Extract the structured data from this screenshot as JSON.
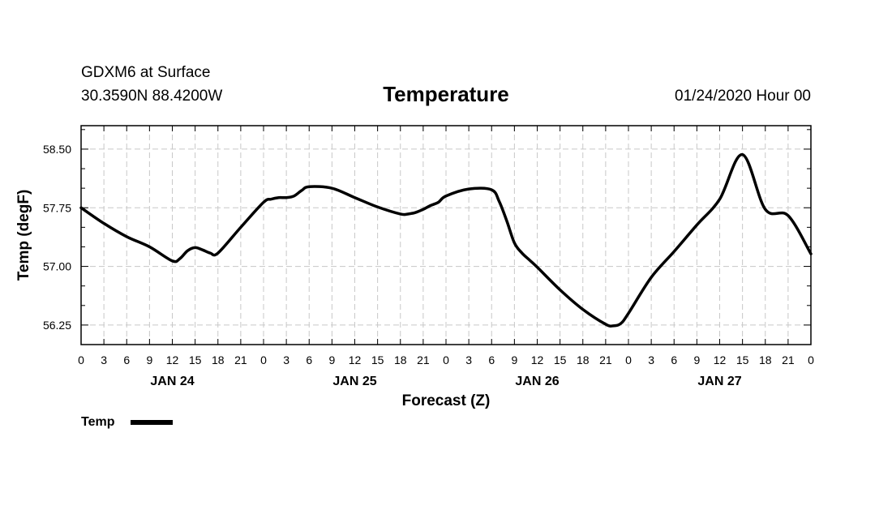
{
  "header": {
    "station": "GDXM6 at Surface",
    "coords": "30.3590N 88.4200W",
    "title": "Temperature",
    "run": "01/24/2020 Hour 00"
  },
  "chart_data": {
    "type": "line",
    "title": "Temperature",
    "xlabel": "Forecast (Z)",
    "ylabel": "Temp (degF)",
    "xlim": [
      0,
      96
    ],
    "ylim": [
      56.0,
      58.8
    ],
    "y_ticks": [
      56.25,
      57.0,
      57.75,
      58.5
    ],
    "y_tick_labels": [
      "56.25",
      "57.00",
      "57.75",
      "58.50"
    ],
    "x_tick_labels": [
      "0",
      "3",
      "6",
      "9",
      "12",
      "15",
      "18",
      "21",
      "0",
      "3",
      "6",
      "9",
      "12",
      "15",
      "18",
      "21",
      "0",
      "3",
      "6",
      "9",
      "12",
      "15",
      "18",
      "21",
      "0",
      "3",
      "6",
      "9",
      "12",
      "15",
      "18",
      "21",
      "0"
    ],
    "day_labels": [
      {
        "label": "JAN 24",
        "center_hour": 12
      },
      {
        "label": "JAN 25",
        "center_hour": 36
      },
      {
        "label": "JAN 26",
        "center_hour": 60
      },
      {
        "label": "JAN 27",
        "center_hour": 84
      }
    ],
    "grid": true,
    "legend": "bottom-left",
    "series": [
      {
        "name": "Temp",
        "color": "#000000",
        "x": [
          0,
          3,
          6,
          9,
          12,
          13,
          14,
          15,
          16,
          17,
          18,
          21,
          24,
          25,
          26,
          27,
          28,
          29,
          30,
          33,
          36,
          39,
          42,
          43,
          44,
          45,
          46,
          47,
          48,
          51,
          54,
          55,
          56,
          57,
          58,
          59,
          60,
          63,
          66,
          69,
          70,
          71,
          72,
          75,
          78,
          81,
          84,
          87,
          90,
          93,
          96
        ],
        "y": [
          57.75,
          57.55,
          57.38,
          57.25,
          57.07,
          57.1,
          57.2,
          57.24,
          57.21,
          57.17,
          57.17,
          57.5,
          57.82,
          57.86,
          57.88,
          57.88,
          57.9,
          57.97,
          58.02,
          58.0,
          57.88,
          57.76,
          57.67,
          57.67,
          57.69,
          57.73,
          57.78,
          57.82,
          57.9,
          57.99,
          57.98,
          57.83,
          57.58,
          57.3,
          57.17,
          57.08,
          56.99,
          56.7,
          56.45,
          56.26,
          56.24,
          56.27,
          56.4,
          56.86,
          57.19,
          57.53,
          57.86,
          58.43,
          57.73,
          57.65,
          57.16
        ]
      }
    ]
  },
  "legend": {
    "label": "Temp"
  }
}
